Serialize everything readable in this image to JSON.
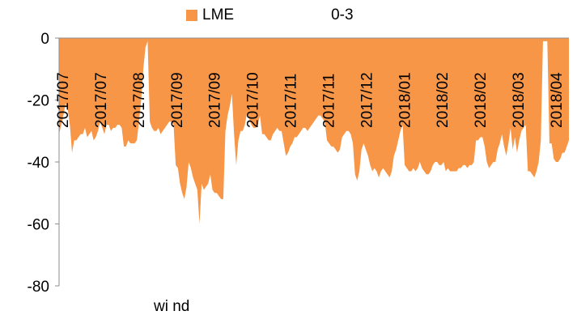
{
  "legend": {
    "series_label": "LME",
    "series_label_2": "0-3"
  },
  "source": "wi nd",
  "chart_data": {
    "type": "area",
    "ylim": [
      -80,
      0
    ],
    "yticks": [
      0,
      -20,
      -40,
      -60,
      -80
    ],
    "color": "#F79646",
    "xlabels": [
      "2017/07",
      "2017/07",
      "2017/08",
      "2017/09",
      "2017/09",
      "2017/10",
      "2017/11",
      "2017/11",
      "2017/12",
      "2018/01",
      "2018/02",
      "2018/02",
      "2018/03",
      "2018/04"
    ],
    "series": [
      {
        "values": [
          -31,
          -28,
          -25,
          -21,
          -23,
          -28,
          -37,
          -33,
          -33,
          -32,
          -31,
          -31,
          -29,
          -32,
          -31,
          -30,
          -33,
          -32,
          -30,
          -27,
          -29,
          -31,
          -28,
          -28,
          -30,
          -29,
          -29,
          -28,
          -28,
          -29,
          -35,
          -35,
          -33,
          -34,
          -34,
          -34,
          -33,
          -27,
          -20,
          -10,
          -3,
          -1,
          -27,
          -29,
          -30,
          -30,
          -29,
          -31,
          -30,
          -29,
          -28,
          -27,
          -27,
          -28,
          -41,
          -42,
          -47,
          -50,
          -52,
          -48,
          -40,
          -42,
          -45,
          -47,
          -49,
          -60,
          -47,
          -49,
          -48,
          -47,
          -44,
          -49,
          -50,
          -50,
          -51,
          -52,
          -52,
          -30,
          -25,
          -22,
          -18,
          -31,
          -41,
          -33,
          -30,
          -30,
          -28,
          -24,
          -26,
          -28,
          -29,
          -29,
          -28,
          -25,
          -31,
          -31,
          -32,
          -33,
          -33,
          -31,
          -30,
          -29,
          -30,
          -30,
          -34,
          -38,
          -37,
          -35,
          -34,
          -32,
          -32,
          -31,
          -30,
          -29,
          -29,
          -30,
          -29,
          -28,
          -27,
          -26,
          -25,
          -25,
          -26,
          -27,
          -33,
          -34,
          -35,
          -35,
          -36,
          -37,
          -36,
          -32,
          -31,
          -30,
          -30,
          -31,
          -34,
          -44,
          -46,
          -43,
          -36,
          -34,
          -36,
          -38,
          -41,
          -43,
          -42,
          -43,
          -45,
          -43,
          -42,
          -43,
          -44,
          -45,
          -43,
          -38,
          -36,
          -33,
          -30,
          -28,
          -41,
          -42,
          -43,
          -43,
          -42,
          -43,
          -42,
          -40,
          -42,
          -43,
          -44,
          -44,
          -43,
          -41,
          -40,
          -40,
          -41,
          -41,
          -40,
          -43,
          -42,
          -43,
          -43,
          -43,
          -43,
          -42,
          -42,
          -41,
          -41,
          -42,
          -41,
          -41,
          -40,
          -33,
          -33,
          -32,
          -32,
          -35,
          -40,
          -42,
          -41,
          -40,
          -40,
          -36,
          -34,
          -31,
          -35,
          -38,
          -34,
          -29,
          -36,
          -32,
          -37,
          -33,
          -30,
          -29,
          -28,
          -43,
          -43,
          -44,
          -45,
          -43,
          -40,
          -33,
          -1,
          -1,
          -1,
          -34,
          -34,
          -39,
          -40,
          -40,
          -39,
          -37,
          -37,
          -35,
          -33
        ]
      }
    ]
  }
}
